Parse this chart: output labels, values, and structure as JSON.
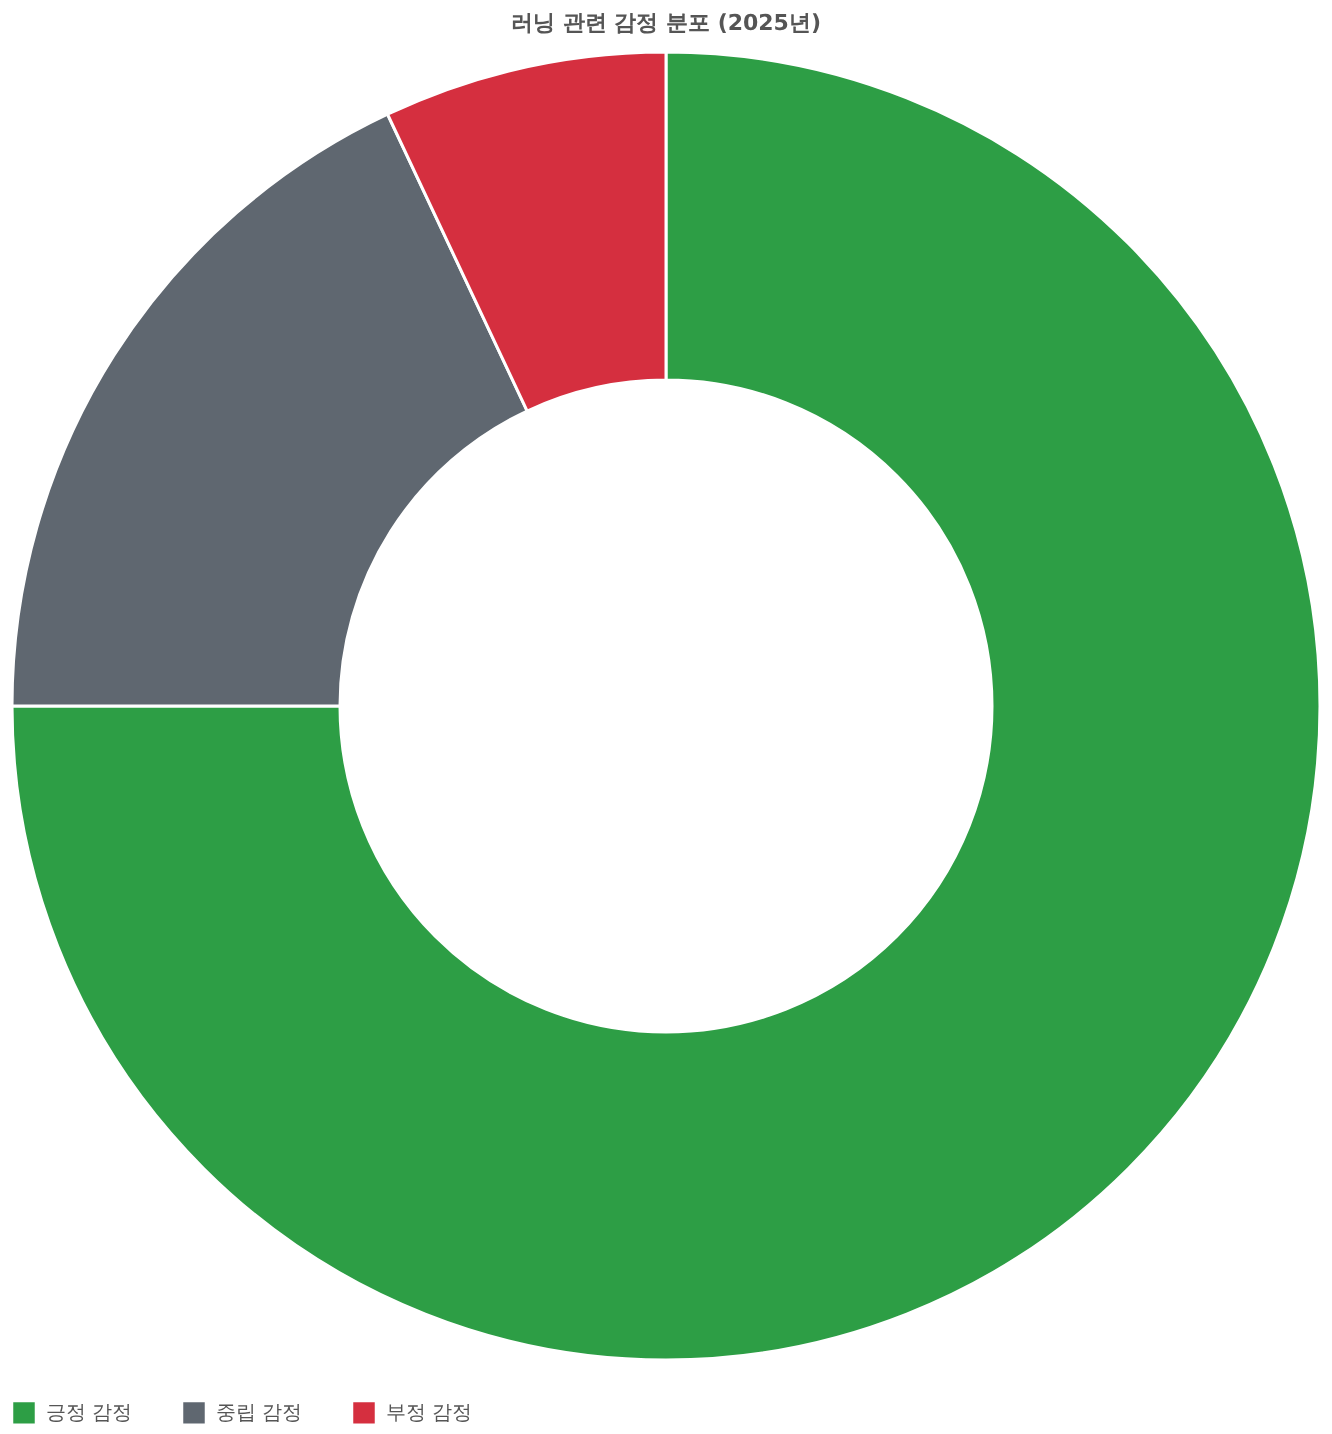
{
  "chart_data": {
    "type": "donut",
    "title": "러닝 관련 감정 분포 (2025년)",
    "categories": [
      "긍정 감정",
      "중립 감정",
      "부정 감정"
    ],
    "values": [
      75,
      18,
      7
    ],
    "colors": [
      "#2d9e45",
      "#5f6770",
      "#d52f3f"
    ],
    "legend": "bottom"
  }
}
